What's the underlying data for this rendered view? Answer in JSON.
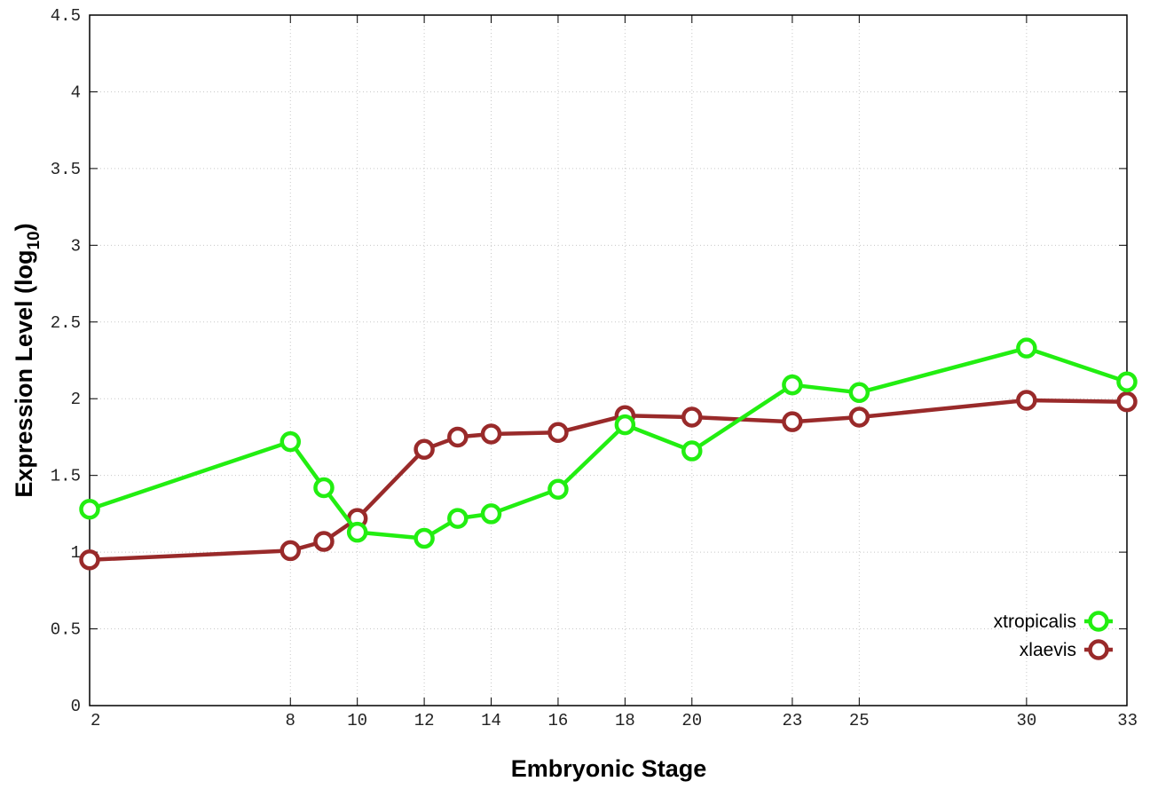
{
  "chart_data": {
    "type": "line",
    "title": "",
    "xlabel": "Embryonic Stage",
    "ylabel_main": "Expression Level (log",
    "ylabel_sub": "10",
    "ylabel_close": ")",
    "x": [
      2,
      8,
      9,
      10,
      12,
      13,
      14,
      16,
      18,
      20,
      23,
      25,
      30,
      33
    ],
    "x_tick_labels": [
      "2",
      "8",
      "10",
      "12",
      "14",
      "16",
      "18",
      "20",
      "23",
      "25",
      "30",
      "33"
    ],
    "y_tick_labels": [
      "0",
      "0.5",
      "1",
      "1.5",
      "2",
      "2.5",
      "3",
      "3.5",
      "4",
      "4.5"
    ],
    "xlim": [
      2,
      33
    ],
    "ylim": [
      0,
      4.5
    ],
    "grid": true,
    "legend_position": "bottom-right",
    "series": [
      {
        "name": "xtropicalis",
        "color": "#22ee11",
        "values": [
          1.28,
          1.72,
          1.42,
          1.13,
          1.09,
          1.22,
          1.25,
          1.41,
          1.83,
          1.66,
          2.09,
          2.04,
          2.33,
          2.11
        ]
      },
      {
        "name": "xlaevis",
        "color": "#992a2a",
        "values": [
          0.95,
          1.01,
          1.07,
          1.22,
          1.67,
          1.75,
          1.77,
          1.78,
          1.89,
          1.88,
          1.85,
          1.88,
          1.99,
          1.98
        ]
      }
    ]
  }
}
